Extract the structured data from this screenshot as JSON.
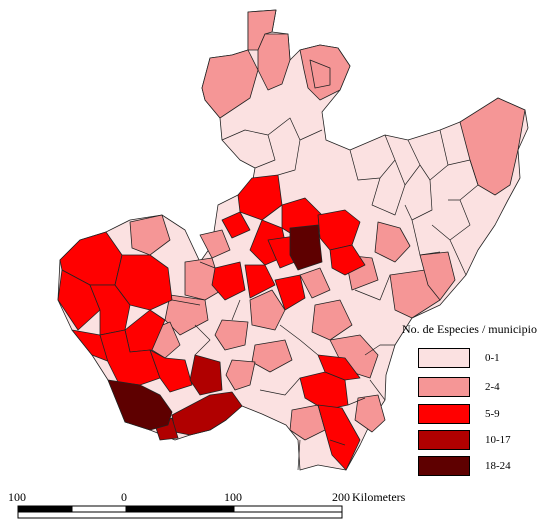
{
  "colors": {
    "class_0_1": "#fbe1e1",
    "class_2_4": "#f59696",
    "class_5_9": "#ff0000",
    "class_10_17": "#b00000",
    "class_18_24": "#5e0000",
    "border": "#222222"
  },
  "legend": {
    "title": "No. de Especies / municipio",
    "classes": [
      {
        "label": "0-1",
        "color": "#fbe1e1"
      },
      {
        "label": "2-4",
        "color": "#f59696"
      },
      {
        "label": "5-9",
        "color": "#ff0000"
      },
      {
        "label": "10-17",
        "color": "#b00000"
      },
      {
        "label": "18-24",
        "color": "#5e0000"
      }
    ]
  },
  "scale_bar": {
    "ticks": [
      "100",
      "0",
      "100",
      "200"
    ],
    "unit": "Kilometers"
  }
}
